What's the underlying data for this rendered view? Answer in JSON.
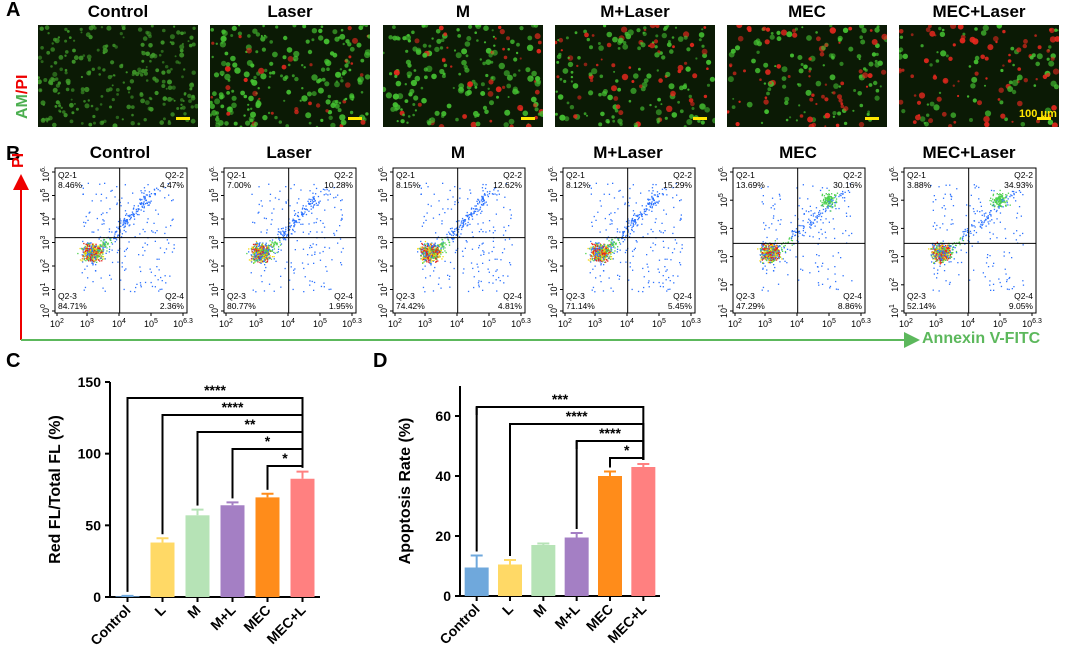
{
  "panel_a": {
    "letter": "A",
    "side_label_green": "AM",
    "side_label_slash": "/",
    "side_label_red": "PI",
    "scale_bar_label": "100 μm",
    "groups": [
      {
        "title": "Control",
        "red_fraction": 0.0
      },
      {
        "title": "Laser",
        "red_fraction": 0.25
      },
      {
        "title": "M",
        "red_fraction": 0.35
      },
      {
        "title": "M+Laser",
        "red_fraction": 0.45
      },
      {
        "title": "MEC",
        "red_fraction": 0.6
      },
      {
        "title": "MEC+Laser",
        "red_fraction": 0.75
      }
    ]
  },
  "panel_b": {
    "letter": "B",
    "y_axis_title": "PI",
    "x_axis_title": "Annexin V-FITC",
    "plots": [
      {
        "title": "Control",
        "q1": "Q2-1",
        "q1v": "8.46%",
        "q2": "Q2-2",
        "q2v": "4.47%",
        "q3": "Q2-3",
        "q3v": "84.71%",
        "q4": "Q2-4",
        "q4v": "2.36%",
        "xticks": [
          "10^2",
          "10^3",
          "10^4",
          "10^5",
          "10^6.3"
        ],
        "yticks": [
          "10^0",
          "10^1",
          "10^2",
          "10^3",
          "10^4",
          "10^5",
          "10^6.1"
        ]
      },
      {
        "title": "Laser",
        "q1": "Q2-1",
        "q1v": "7.00%",
        "q2": "Q2-2",
        "q2v": "10.28%",
        "q3": "Q2-3",
        "q3v": "80.77%",
        "q4": "Q2-4",
        "q4v": "1.95%",
        "xticks": [
          "10^2",
          "10^3",
          "10^4",
          "10^5",
          "10^6.3"
        ],
        "yticks": [
          "10^0",
          "10^1",
          "10^2",
          "10^3",
          "10^4",
          "10^5",
          "10^6.1"
        ]
      },
      {
        "title": "M",
        "q1": "Q2-1",
        "q1v": "8.15%",
        "q2": "Q2-2",
        "q2v": "12.62%",
        "q3": "Q2-3",
        "q3v": "74.42%",
        "q4": "Q2-4",
        "q4v": "4.81%",
        "xticks": [
          "10^2",
          "10^3",
          "10^4",
          "10^5",
          "10^6.3"
        ],
        "yticks": [
          "10^0",
          "10^1",
          "10^2",
          "10^3",
          "10^4",
          "10^5",
          "10^6.1"
        ]
      },
      {
        "title": "M+Laser",
        "q1": "Q2-1",
        "q1v": "8.12%",
        "q2": "Q2-2",
        "q2v": "15.29%",
        "q3": "Q2-3",
        "q3v": "71.14%",
        "q4": "Q2-4",
        "q4v": "5.45%",
        "xticks": [
          "10^2",
          "10^3",
          "10^4",
          "10^5",
          "10^6.3"
        ],
        "yticks": [
          "10^0",
          "10^1",
          "10^2",
          "10^3",
          "10^4",
          "10^5",
          "10^6.1"
        ]
      },
      {
        "title": "MEC",
        "q1": "Q2-1",
        "q1v": "13.69%",
        "q2": "Q2-2",
        "q2v": "30.16%",
        "q3": "Q2-3",
        "q3v": "47.29%",
        "q4": "Q2-4",
        "q4v": "8.86%",
        "xticks": [
          "10^2",
          "10^3",
          "10^4",
          "10^5",
          "10^6.3"
        ],
        "yticks": [
          "10^1",
          "10^2",
          "10^3",
          "10^4",
          "10^5",
          "10^6.4"
        ]
      },
      {
        "title": "MEC+Laser",
        "q1": "Q2-1",
        "q1v": "3.88%",
        "q2": "Q2-2",
        "q2v": "34.93%",
        "q3": "Q2-3",
        "q3v": "52.14%",
        "q4": "Q2-4",
        "q4v": "9.05%",
        "xticks": [
          "10^2",
          "10^3",
          "10^4",
          "10^5",
          "10^6.3"
        ],
        "yticks": [
          "10^1",
          "10^2",
          "10^3",
          "10^4",
          "10^5",
          "10^6.4"
        ]
      }
    ]
  },
  "chart_data": [
    {
      "panel": "C",
      "type": "bar",
      "title": "",
      "xlabel": "",
      "ylabel": "Red FL/Total FL (%)",
      "categories": [
        "Control",
        "L",
        "M",
        "M+L",
        "MEC",
        "MEC+L"
      ],
      "values": [
        0.5,
        38,
        57,
        64,
        69.5,
        82.5
      ],
      "errors": [
        0.3,
        3,
        4,
        2,
        2.5,
        5
      ],
      "colors": [
        "#6fa8dc",
        "#ffd966",
        "#b6e3b6",
        "#a47fc4",
        "#ff8c1a",
        "#ff8080"
      ],
      "ylim": [
        0,
        150
      ],
      "yticks": [
        0,
        50,
        100,
        150
      ],
      "significance": [
        {
          "from": "Control",
          "to": "MEC+L",
          "label": "****"
        },
        {
          "from": "L",
          "to": "MEC+L",
          "label": "****"
        },
        {
          "from": "M",
          "to": "MEC+L",
          "label": "**"
        },
        {
          "from": "M+L",
          "to": "MEC+L",
          "label": "*"
        },
        {
          "from": "MEC",
          "to": "MEC+L",
          "label": "*"
        }
      ]
    },
    {
      "panel": "D",
      "type": "bar",
      "title": "",
      "xlabel": "",
      "ylabel": "Apoptosis Rate (%)",
      "categories": [
        "Control",
        "L",
        "M",
        "M+L",
        "MEC",
        "MEC+L"
      ],
      "values": [
        9.5,
        10.5,
        17,
        19.5,
        40,
        43
      ],
      "errors": [
        4,
        1.5,
        0.5,
        1.5,
        1.5,
        1
      ],
      "colors": [
        "#6fa8dc",
        "#ffd966",
        "#b6e3b6",
        "#a47fc4",
        "#ff8c1a",
        "#ff8080"
      ],
      "ylim": [
        0,
        70
      ],
      "yticks": [
        0,
        20,
        40,
        60
      ],
      "significance": [
        {
          "from": "Control",
          "to": "MEC+L",
          "label": "***"
        },
        {
          "from": "L",
          "to": "MEC+L",
          "label": "****"
        },
        {
          "from": "M+L",
          "to": "MEC+L",
          "label": "****"
        },
        {
          "from": "MEC",
          "to": "MEC+L",
          "label": "*"
        }
      ]
    }
  ],
  "panel_c_letter": "C",
  "panel_d_letter": "D"
}
